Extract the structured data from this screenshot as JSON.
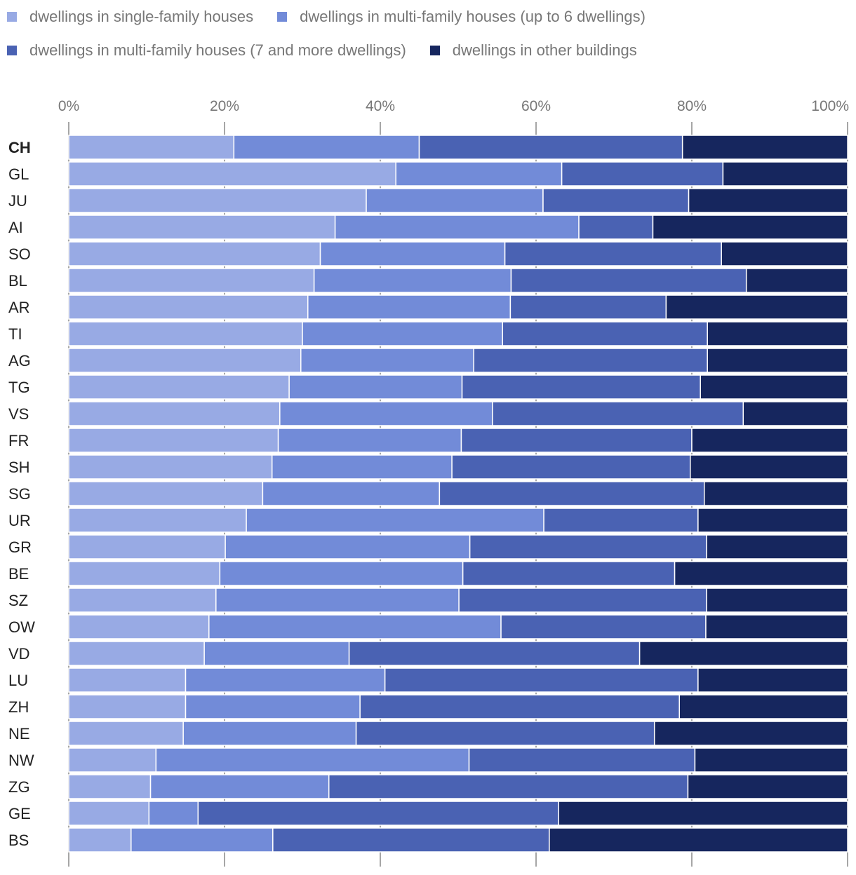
{
  "colors": {
    "single": "#98aae4",
    "multi6": "#728bd8",
    "multi7": "#4a62b3",
    "other": "#16265e",
    "grid": "#888888"
  },
  "legend": [
    {
      "label": "dwellings in single-family houses",
      "color": "#98aae4"
    },
    {
      "label": "dwellings in multi-family houses (up to 6 dwellings)",
      "color": "#728bd8"
    },
    {
      "label": "dwellings in multi-family houses (7 and more dwellings)",
      "color": "#4a62b3"
    },
    {
      "label": "dwellings in other buildings",
      "color": "#16265e"
    }
  ],
  "chart_data": {
    "type": "bar",
    "orientation": "horizontal",
    "stacked": true,
    "xlim": [
      0,
      100
    ],
    "xticks": [
      "0%",
      "20%",
      "40%",
      "60%",
      "80%",
      "100%"
    ],
    "grid": true,
    "legend_position": "top",
    "categories": [
      "CH",
      "GL",
      "JU",
      "AI",
      "SO",
      "BL",
      "AR",
      "TI",
      "AG",
      "TG",
      "VS",
      "FR",
      "SH",
      "SG",
      "UR",
      "GR",
      "BE",
      "SZ",
      "OW",
      "VD",
      "LU",
      "ZH",
      "NE",
      "NW",
      "ZG",
      "GE",
      "BS"
    ],
    "bold_category": "CH",
    "series": [
      {
        "name": "dwellings in single-family houses",
        "values": [
          21.2,
          42.0,
          38.2,
          34.2,
          32.3,
          31.5,
          30.7,
          30.0,
          29.8,
          28.3,
          27.1,
          26.9,
          26.1,
          24.9,
          22.8,
          20.1,
          19.4,
          18.9,
          18.0,
          17.4,
          15.0,
          15.0,
          14.7,
          11.2,
          10.5,
          10.3,
          8.0
        ]
      },
      {
        "name": "dwellings in multi-family houses (up to 6 dwellings)",
        "values": [
          23.8,
          21.3,
          22.7,
          31.3,
          23.7,
          25.3,
          26.0,
          25.7,
          22.2,
          22.2,
          27.3,
          23.5,
          23.1,
          22.7,
          38.2,
          31.4,
          31.2,
          31.2,
          37.5,
          18.6,
          25.6,
          22.4,
          22.2,
          40.2,
          22.9,
          6.3,
          18.2
        ]
      },
      {
        "name": "dwellings in multi-family houses (7 and more dwellings)",
        "values": [
          33.8,
          20.7,
          18.7,
          9.5,
          27.8,
          30.2,
          20.0,
          26.3,
          30.0,
          30.6,
          32.2,
          29.6,
          30.6,
          34.0,
          19.8,
          30.4,
          27.2,
          31.8,
          26.3,
          37.3,
          40.2,
          41.0,
          38.3,
          29.0,
          46.1,
          46.3,
          35.5
        ]
      },
      {
        "name": "dwellings in other buildings",
        "values": [
          21.2,
          16.0,
          20.4,
          25.0,
          16.2,
          13.0,
          23.3,
          18.0,
          18.0,
          18.9,
          13.4,
          20.0,
          20.2,
          18.4,
          19.2,
          18.1,
          22.2,
          18.1,
          18.2,
          26.7,
          19.2,
          21.6,
          24.8,
          19.6,
          20.5,
          37.1,
          38.3
        ]
      }
    ]
  }
}
